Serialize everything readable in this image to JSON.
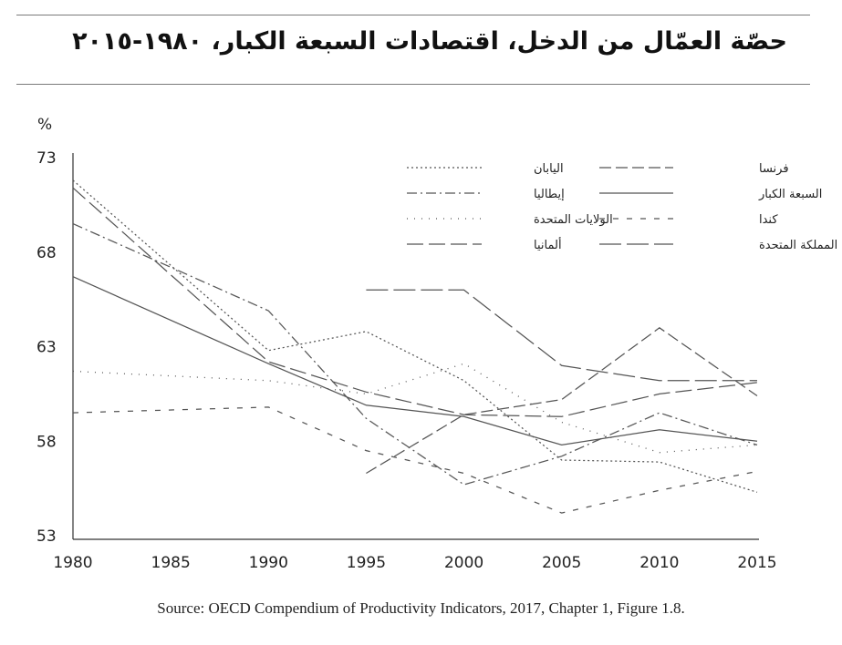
{
  "title": "حصّة العمّال من الدخل، اقتصادات السبعة الكبار، ١٩٨٠-٢٠١٥",
  "source": "Source: OECD Compendium of Productivity Indicators, 2017, Chapter 1, Figure 1.8.",
  "chart_data": {
    "type": "line",
    "title": "حصّة العمّال من الدخل، اقتصادات السبعة الكبار، ١٩٨٠-٢٠١٥",
    "ylabel": "%",
    "xlabel": "",
    "x": [
      1980,
      1985,
      1990,
      1995,
      2000,
      2005,
      2010,
      2015
    ],
    "xlim": [
      1980,
      2015
    ],
    "ylim": [
      53,
      73
    ],
    "yticks": [
      53,
      58,
      63,
      68,
      73
    ],
    "grid": false,
    "legend_position": "top-right",
    "series": [
      {
        "name": "اليابان",
        "dash": "2,3",
        "points": [
          [
            1980,
            71.8
          ],
          [
            1990,
            62.8
          ],
          [
            1995,
            63.8
          ],
          [
            2000,
            61.2
          ],
          [
            2005,
            57.0
          ],
          [
            2010,
            56.9
          ],
          [
            2015,
            55.3
          ]
        ]
      },
      {
        "name": "فرنسا",
        "dash": "13,5",
        "points": [
          [
            1995,
            56.3
          ],
          [
            2000,
            59.4
          ],
          [
            2005,
            60.2
          ],
          [
            2010,
            64.0
          ],
          [
            2015,
            60.4
          ]
        ]
      },
      {
        "name": "إيطاليا",
        "dash": "11,4,2,4",
        "points": [
          [
            1980,
            69.5
          ],
          [
            1985,
            67.2
          ],
          [
            1990,
            64.9
          ],
          [
            1995,
            59.2
          ],
          [
            2000,
            55.7
          ],
          [
            2005,
            57.2
          ],
          [
            2010,
            59.5
          ],
          [
            2015,
            57.8
          ]
        ]
      },
      {
        "name": "السبعة الكبار",
        "dash": "",
        "points": [
          [
            1980,
            66.7
          ],
          [
            1990,
            62.1
          ],
          [
            1995,
            59.9
          ],
          [
            2000,
            59.3
          ],
          [
            2005,
            57.8
          ],
          [
            2010,
            58.6
          ],
          [
            2015,
            58.0
          ]
        ]
      },
      {
        "name": "الولايات المتحدة",
        "dash": "1,7",
        "points": [
          [
            1980,
            61.7
          ],
          [
            1990,
            61.2
          ],
          [
            1995,
            60.5
          ],
          [
            2000,
            62.1
          ],
          [
            2005,
            59.0
          ],
          [
            2010,
            57.4
          ],
          [
            2015,
            57.8
          ]
        ]
      },
      {
        "name": "كندا",
        "dash": "6,9",
        "points": [
          [
            1980,
            59.5
          ],
          [
            1990,
            59.8
          ],
          [
            1995,
            57.5
          ],
          [
            2000,
            56.3
          ],
          [
            2005,
            54.2
          ],
          [
            2010,
            55.4
          ],
          [
            2015,
            56.4
          ]
        ]
      },
      {
        "name": "ألمانيا",
        "dash": "18,6",
        "points": [
          [
            1980,
            71.4
          ],
          [
            1990,
            62.2
          ],
          [
            1995,
            60.6
          ],
          [
            2000,
            59.4
          ],
          [
            2005,
            59.3
          ],
          [
            2010,
            60.5
          ],
          [
            2015,
            61.1
          ]
        ]
      },
      {
        "name": "المملكة المتحدة",
        "dash": "24,6",
        "points": [
          [
            1995,
            66.0
          ],
          [
            2000,
            66.0
          ],
          [
            2005,
            62.0
          ],
          [
            2010,
            61.2
          ],
          [
            2015,
            61.2
          ]
        ]
      }
    ]
  }
}
